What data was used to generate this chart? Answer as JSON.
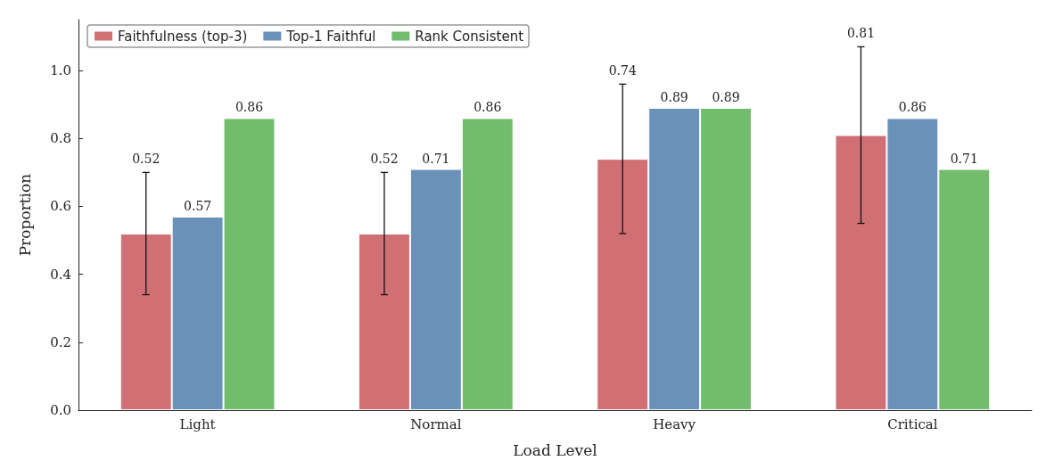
{
  "chart_data": {
    "type": "bar",
    "xlabel": "Load Level",
    "ylabel": "Proportion",
    "categories": [
      "Light",
      "Normal",
      "Heavy",
      "Critical"
    ],
    "series": [
      {
        "name": "Faithfulness (top-3)",
        "color": "#d07074",
        "values": [
          0.52,
          0.52,
          0.74,
          0.81
        ],
        "errors": [
          0.18,
          0.18,
          0.22,
          0.26
        ],
        "value_labels": [
          null,
          null,
          null,
          null
        ]
      },
      {
        "name": "Top-1 Faithful",
        "color": "#6a91b8",
        "values": [
          0.57,
          0.71,
          0.89,
          0.86
        ]
      },
      {
        "name": "Rank Consistent",
        "color": "#72bd6d",
        "values": [
          0.86,
          0.86,
          0.89,
          0.71
        ]
      }
    ],
    "ylim": [
      0,
      1.15
    ],
    "yticks": [
      {
        "value": 0,
        "label": "0.0"
      },
      0.2,
      0.4,
      0.6,
      0.8,
      {
        "value": 1,
        "label": "1.0"
      }
    ],
    "data_labels": true,
    "annotations": [
      "0.52",
      "0.52",
      "0.74",
      "0.81"
    ],
    "grid": false,
    "legend": "top left"
  }
}
